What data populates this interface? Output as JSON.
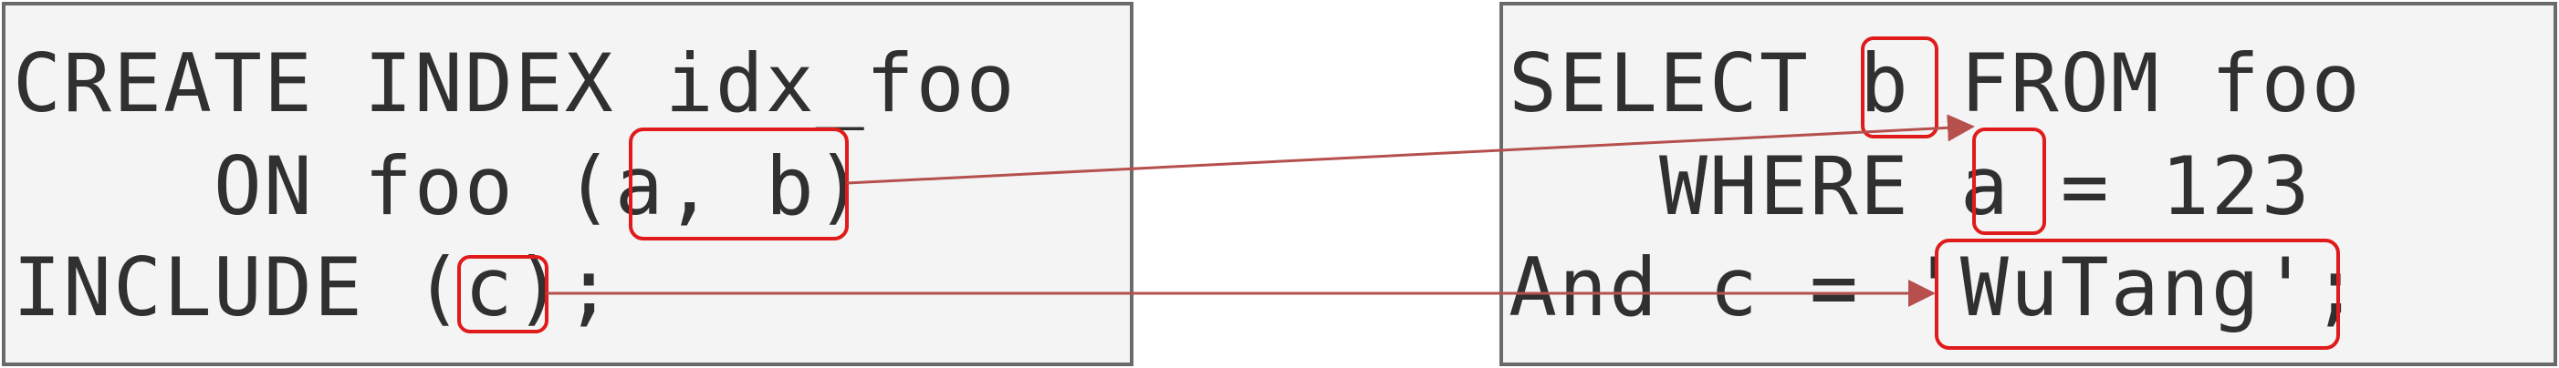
{
  "index_statement": {
    "line1": "CREATE INDEX idx_foo",
    "line2": "    ON foo (a, b)",
    "line3": "INCLUDE (c);"
  },
  "query_statement": {
    "line1": "SELECT b FROM foo",
    "line2": "   WHERE a = 123",
    "line3": "And c = 'WuTang';"
  },
  "colors": {
    "highlight_box": "#e01b1b",
    "arrow": "#b5504d",
    "panel_border": "#6a6a6a",
    "panel_fill": "#f4f4f4",
    "code_text": "#303030"
  }
}
